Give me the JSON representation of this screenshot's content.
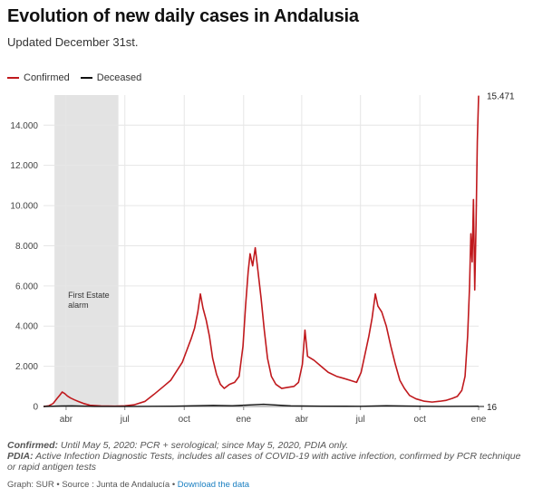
{
  "header": {
    "title": "Evolution of new daily cases in Andalusia",
    "subtitle": "Updated December 31st."
  },
  "legend": {
    "items": [
      {
        "label": "Confirmed",
        "color": "#c0191d"
      },
      {
        "label": "Deceased",
        "color": "#111111"
      }
    ]
  },
  "chart_data": {
    "type": "line",
    "title": "Evolution of new daily cases in Andalusia",
    "subtitle": "Updated December 31st.",
    "xlabel": "",
    "ylabel": "",
    "x_ticks": [
      "abr",
      "jul",
      "oct",
      "ene",
      "abr",
      "jul",
      "oct",
      "ene"
    ],
    "y_ticks": [
      "0",
      "2.000",
      "4.000",
      "6.000",
      "8.000",
      "10.000",
      "12.000",
      "14.000"
    ],
    "ylim": [
      0,
      15500
    ],
    "grid": true,
    "legend_position": "top-left",
    "annotation": {
      "label": "First Estate alarm",
      "from": "2020-03-14",
      "to": "2020-06-21"
    },
    "end_labels": {
      "confirmed": "15.471",
      "deceased": "16"
    },
    "series": [
      {
        "name": "Confirmed",
        "color": "#c0191d",
        "points": [
          [
            "2020-02-26",
            0
          ],
          [
            "2020-03-05",
            30
          ],
          [
            "2020-03-12",
            150
          ],
          [
            "2020-03-18",
            400
          ],
          [
            "2020-03-22",
            550
          ],
          [
            "2020-03-26",
            720
          ],
          [
            "2020-03-30",
            640
          ],
          [
            "2020-04-03",
            520
          ],
          [
            "2020-04-08",
            420
          ],
          [
            "2020-04-14",
            330
          ],
          [
            "2020-04-20",
            250
          ],
          [
            "2020-04-28",
            150
          ],
          [
            "2020-05-08",
            60
          ],
          [
            "2020-05-25",
            25
          ],
          [
            "2020-06-15",
            15
          ],
          [
            "2020-07-01",
            30
          ],
          [
            "2020-07-15",
            80
          ],
          [
            "2020-08-01",
            250
          ],
          [
            "2020-08-15",
            600
          ],
          [
            "2020-08-30",
            1000
          ],
          [
            "2020-09-10",
            1300
          ],
          [
            "2020-09-20",
            1800
          ],
          [
            "2020-09-28",
            2200
          ],
          [
            "2020-10-05",
            2800
          ],
          [
            "2020-10-12",
            3400
          ],
          [
            "2020-10-17",
            3900
          ],
          [
            "2020-10-22",
            4700
          ],
          [
            "2020-10-26",
            5600
          ],
          [
            "2020-10-30",
            4900
          ],
          [
            "2020-11-04",
            4300
          ],
          [
            "2020-11-09",
            3500
          ],
          [
            "2020-11-14",
            2400
          ],
          [
            "2020-11-20",
            1600
          ],
          [
            "2020-11-26",
            1100
          ],
          [
            "2020-12-02",
            900
          ],
          [
            "2020-12-10",
            1100
          ],
          [
            "2020-12-18",
            1200
          ],
          [
            "2020-12-25",
            1500
          ],
          [
            "2020-12-31",
            3000
          ],
          [
            "2021-01-04",
            5000
          ],
          [
            "2021-01-08",
            6700
          ],
          [
            "2021-01-11",
            7600
          ],
          [
            "2021-01-15",
            7000
          ],
          [
            "2021-01-19",
            7900
          ],
          [
            "2021-01-23",
            6800
          ],
          [
            "2021-01-28",
            5400
          ],
          [
            "2021-02-02",
            3800
          ],
          [
            "2021-02-07",
            2400
          ],
          [
            "2021-02-13",
            1500
          ],
          [
            "2021-02-20",
            1100
          ],
          [
            "2021-03-01",
            900
          ],
          [
            "2021-03-10",
            950
          ],
          [
            "2021-03-20",
            1000
          ],
          [
            "2021-03-27",
            1200
          ],
          [
            "2021-04-02",
            2100
          ],
          [
            "2021-04-06",
            3800
          ],
          [
            "2021-04-10",
            2500
          ],
          [
            "2021-04-20",
            2300
          ],
          [
            "2021-05-01",
            2000
          ],
          [
            "2021-05-12",
            1700
          ],
          [
            "2021-05-25",
            1500
          ],
          [
            "2021-06-05",
            1400
          ],
          [
            "2021-06-15",
            1300
          ],
          [
            "2021-06-25",
            1200
          ],
          [
            "2021-07-02",
            1700
          ],
          [
            "2021-07-08",
            2600
          ],
          [
            "2021-07-14",
            3500
          ],
          [
            "2021-07-19",
            4400
          ],
          [
            "2021-07-24",
            5600
          ],
          [
            "2021-07-28",
            5000
          ],
          [
            "2021-08-03",
            4700
          ],
          [
            "2021-08-10",
            4000
          ],
          [
            "2021-08-17",
            3000
          ],
          [
            "2021-08-24",
            2100
          ],
          [
            "2021-08-31",
            1300
          ],
          [
            "2021-09-07",
            900
          ],
          [
            "2021-09-15",
            550
          ],
          [
            "2021-09-25",
            380
          ],
          [
            "2021-10-08",
            260
          ],
          [
            "2021-10-20",
            220
          ],
          [
            "2021-11-01",
            260
          ],
          [
            "2021-11-10",
            300
          ],
          [
            "2021-11-20",
            400
          ],
          [
            "2021-11-28",
            500
          ],
          [
            "2021-12-05",
            800
          ],
          [
            "2021-12-10",
            1500
          ],
          [
            "2021-12-14",
            3500
          ],
          [
            "2021-12-17",
            6000
          ],
          [
            "2021-12-19",
            8600
          ],
          [
            "2021-12-21",
            7200
          ],
          [
            "2021-12-23",
            10300
          ],
          [
            "2021-12-25",
            5800
          ],
          [
            "2021-12-27",
            9000
          ],
          [
            "2021-12-29",
            13200
          ],
          [
            "2021-12-31",
            15471
          ]
        ]
      },
      {
        "name": "Deceased",
        "color": "#111111",
        "points": [
          [
            "2020-02-26",
            0
          ],
          [
            "2020-03-25",
            25
          ],
          [
            "2020-04-10",
            30
          ],
          [
            "2020-05-15",
            5
          ],
          [
            "2020-07-15",
            3
          ],
          [
            "2020-09-15",
            15
          ],
          [
            "2020-11-15",
            55
          ],
          [
            "2020-12-15",
            35
          ],
          [
            "2021-02-01",
            110
          ],
          [
            "2021-02-15",
            80
          ],
          [
            "2021-03-15",
            30
          ],
          [
            "2021-05-01",
            15
          ],
          [
            "2021-07-01",
            10
          ],
          [
            "2021-08-10",
            35
          ],
          [
            "2021-09-15",
            20
          ],
          [
            "2021-11-01",
            5
          ],
          [
            "2021-12-15",
            8
          ],
          [
            "2021-12-31",
            16
          ]
        ]
      }
    ]
  },
  "notes": {
    "confirmed_label": "Confirmed:",
    "confirmed_text": "Until May 5, 2020: PCR + serological; since May 5, 2020, PDIA only.",
    "pdia_label": "PDIA:",
    "pdia_text": "Active Infection Diagnostic Tests, includes all cases of COVID-19 with active infection, confirmed by PCR technique or rapid antigen tests"
  },
  "credits": {
    "text": "Graph: SUR • Source : Junta de Andalucía • ",
    "download_label": "Download the data"
  }
}
